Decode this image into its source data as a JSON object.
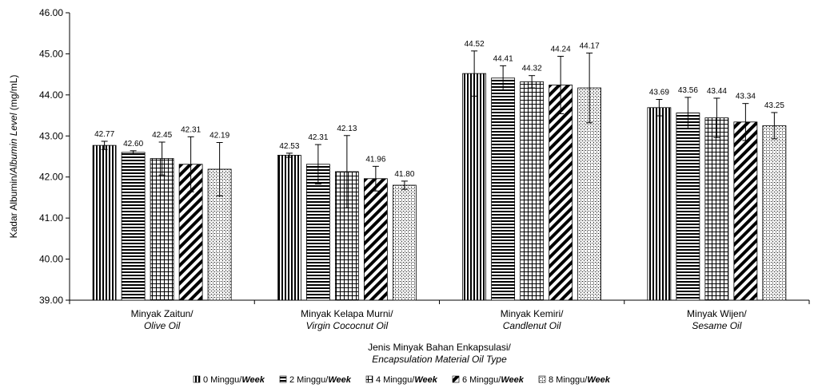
{
  "chart_data": {
    "type": "bar",
    "ylabel_parts": [
      "Kadar Albumin/",
      "Albumin Level",
      " (mg/mL)"
    ],
    "xlabel_lines": [
      "Jenis Minyak Bahan Enkapsulasi/",
      "Encapsulation Material Oil Type"
    ],
    "ylim": [
      39,
      46
    ],
    "yticks": [
      "39.00",
      "40.00",
      "41.00",
      "42.00",
      "43.00",
      "44.00",
      "45.00",
      "46.00"
    ],
    "categories": [
      {
        "line1": "Minyak Zaitun/",
        "line2": "Olive Oil"
      },
      {
        "line1": "Minyak Kelapa Murni/",
        "line2": "Virgin Cococnut Oil"
      },
      {
        "line1": "Minyak Kemiri/",
        "line2": "Candlenut Oil"
      },
      {
        "line1": "Minyak Wijen/",
        "line2": "Sesame Oil"
      }
    ],
    "series": [
      {
        "name_main": "0 Minggu/",
        "name_italic": "Week",
        "pattern": "vertical",
        "values": [
          42.77,
          42.53,
          44.52,
          43.69
        ],
        "labels": [
          "42.77",
          "42.53",
          "44.52",
          "43.69"
        ],
        "errors": [
          0.1,
          0.05,
          0.55,
          0.2
        ]
      },
      {
        "name_main": "2 Minggu/",
        "name_italic": "Week",
        "pattern": "horizontal",
        "values": [
          42.6,
          42.31,
          44.41,
          43.56
        ],
        "labels": [
          "42.60",
          "42.31",
          "44.41",
          "43.56"
        ],
        "errors": [
          0.04,
          0.48,
          0.3,
          0.38
        ]
      },
      {
        "name_main": "4 Minggu/",
        "name_italic": "Week",
        "pattern": "grid",
        "values": [
          42.45,
          42.13,
          44.32,
          43.44
        ],
        "labels": [
          "42.45",
          "42.13",
          "44.32",
          "43.44"
        ],
        "errors": [
          0.4,
          0.88,
          0.15,
          0.48
        ]
      },
      {
        "name_main": "6 Minggu/",
        "name_italic": "Week",
        "pattern": "diagonal",
        "values": [
          42.31,
          41.96,
          44.24,
          43.34
        ],
        "labels": [
          "42.31",
          "41.96",
          "44.24",
          "43.34"
        ],
        "errors": [
          0.67,
          0.3,
          0.7,
          0.45
        ]
      },
      {
        "name_main": "8 Minggu/",
        "name_italic": "Week",
        "pattern": "dots",
        "values": [
          42.19,
          41.8,
          44.17,
          43.25
        ],
        "labels": [
          "42.19",
          "41.80",
          "44.17",
          "43.25"
        ],
        "errors": [
          0.65,
          0.1,
          0.85,
          0.32
        ]
      }
    ],
    "legend_position": "bottom",
    "grid": false
  }
}
